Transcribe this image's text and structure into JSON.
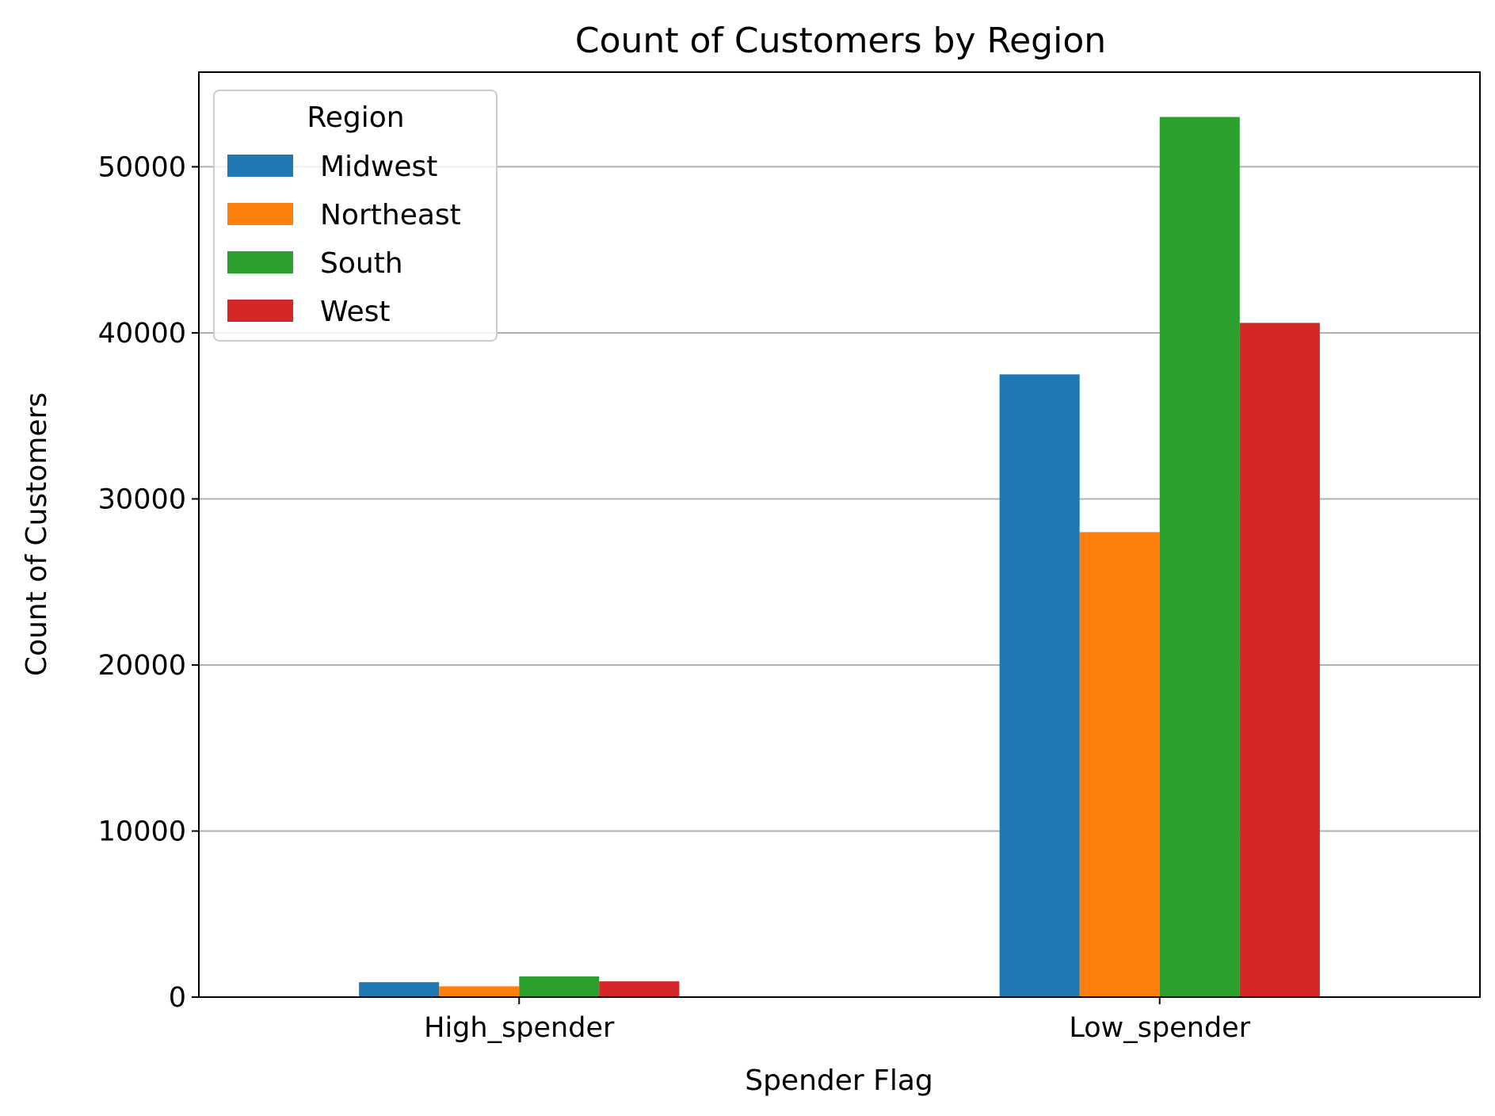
{
  "chart_data": {
    "type": "bar",
    "title": "Count of Customers by Region",
    "xlabel": "Spender Flag",
    "ylabel": "Count of Customers",
    "categories": [
      "High_spender",
      "Low_spender"
    ],
    "series": [
      {
        "name": "Midwest",
        "values": [
          900,
          37500
        ],
        "color": "#1f77b4"
      },
      {
        "name": "Northeast",
        "values": [
          650,
          28000
        ],
        "color": "#ff7f0e"
      },
      {
        "name": "South",
        "values": [
          1250,
          53000
        ],
        "color": "#2ca02c"
      },
      {
        "name": "West",
        "values": [
          950,
          40600
        ],
        "color": "#d62728"
      }
    ],
    "ylim": [
      0,
      55700
    ],
    "yticks": [
      0,
      10000,
      20000,
      30000,
      40000,
      50000
    ],
    "ytick_labels": [
      "0",
      "10000",
      "20000",
      "30000",
      "40000",
      "50000"
    ],
    "grid": {
      "y": true,
      "x": false,
      "color": "#b0b0b0"
    },
    "legend": {
      "title": "Region",
      "placement": "top-left"
    }
  }
}
